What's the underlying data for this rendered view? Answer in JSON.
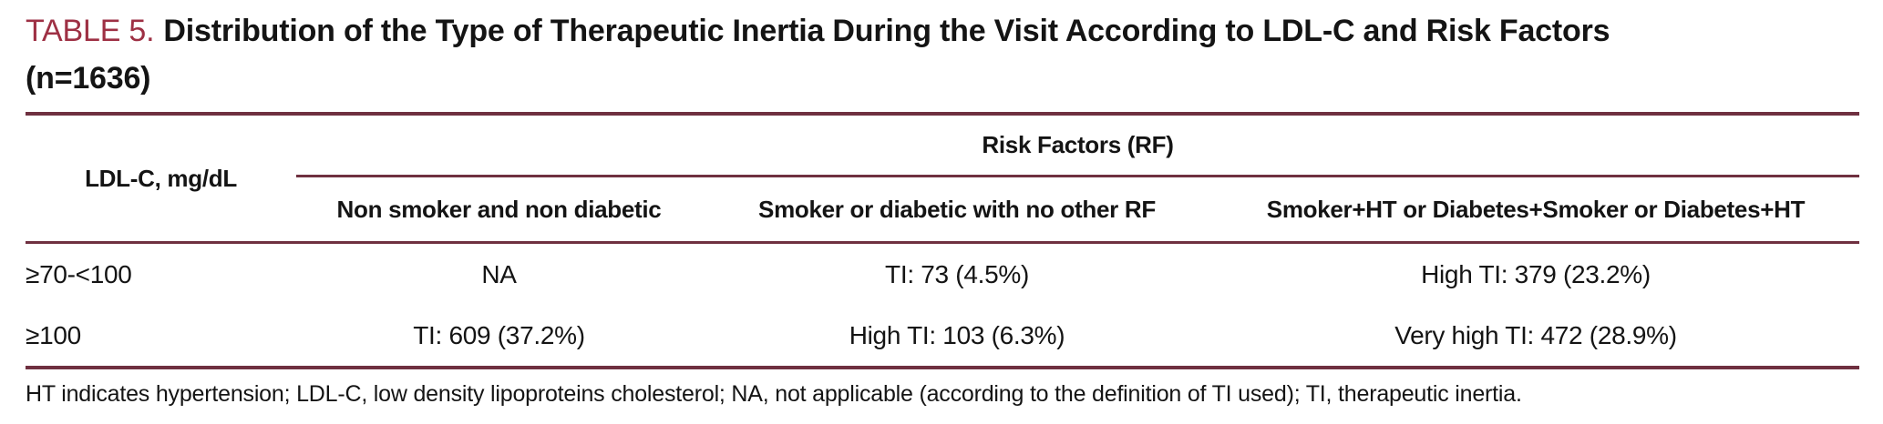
{
  "table_label": "TABLE 5.",
  "title": "Distribution of the Type of Therapeutic Inertia During the Visit According to LDL-C and Risk Factors",
  "title_suffix": "(n=1636)",
  "colors": {
    "accent_red": "#9e3044",
    "rule_maroon": "#6f3040",
    "text_black": "#141414",
    "background": "#ffffff"
  },
  "header": {
    "row_label_column": "LDL-C, mg/dL",
    "group_header": "Risk Factors (RF)",
    "columns": [
      "Non smoker and non diabetic",
      "Smoker or diabetic with no other RF",
      "Smoker+HT or Diabetes+Smoker or Diabetes+HT"
    ]
  },
  "rows": [
    {
      "label": "≥70-<100",
      "cells": [
        "NA",
        "TI: 73 (4.5%)",
        "High TI: 379 (23.2%)"
      ]
    },
    {
      "label": "≥100",
      "cells": [
        "TI: 609 (37.2%)",
        "High TI: 103 (6.3%)",
        "Very high TI: 472 (28.9%)"
      ]
    }
  ],
  "footnote": "HT indicates hypertension; LDL-C, low density lipoproteins cholesterol; NA, not applicable (according to the definition of TI used); TI, therapeutic inertia."
}
